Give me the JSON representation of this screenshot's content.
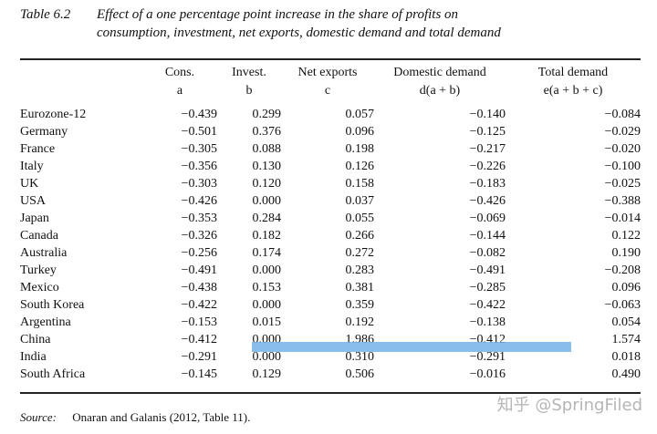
{
  "title": {
    "number": "Table 6.2",
    "line1": "Effect of a one percentage point increase in the share of profits on",
    "line2": "consumption, investment, net exports, domestic demand and total demand"
  },
  "columns": [
    {
      "name": "",
      "sub": ""
    },
    {
      "name": "Cons.",
      "sub": "a"
    },
    {
      "name": "Invest.",
      "sub": "b"
    },
    {
      "name": "Net exports",
      "sub": "c"
    },
    {
      "name": "Domestic demand",
      "sub": "d(a + b)"
    },
    {
      "name": "Total demand",
      "sub": "e(a + b + c)"
    }
  ],
  "rows": [
    [
      "Eurozone-12",
      "−0.439",
      "0.299",
      "0.057",
      "−0.140",
      "−0.084"
    ],
    [
      "Germany",
      "−0.501",
      "0.376",
      "0.096",
      "−0.125",
      "−0.029"
    ],
    [
      "France",
      "−0.305",
      "0.088",
      "0.198",
      "−0.217",
      "−0.020"
    ],
    [
      "Italy",
      "−0.356",
      "0.130",
      "0.126",
      "−0.226",
      "−0.100"
    ],
    [
      "UK",
      "−0.303",
      "0.120",
      "0.158",
      "−0.183",
      "−0.025"
    ],
    [
      "USA",
      "−0.426",
      "0.000",
      "0.037",
      "−0.426",
      "−0.388"
    ],
    [
      "Japan",
      "−0.353",
      "0.284",
      "0.055",
      "−0.069",
      "−0.014"
    ],
    [
      "Canada",
      "−0.326",
      "0.182",
      "0.266",
      "−0.144",
      "0.122"
    ],
    [
      "Australia",
      "−0.256",
      "0.174",
      "0.272",
      "−0.082",
      "0.190"
    ],
    [
      "Turkey",
      "−0.491",
      "0.000",
      "0.283",
      "−0.491",
      "−0.208"
    ],
    [
      "Mexico",
      "−0.438",
      "0.153",
      "0.381",
      "−0.285",
      "0.096"
    ],
    [
      "South Korea",
      "−0.422",
      "0.000",
      "0.359",
      "−0.422",
      "−0.063"
    ],
    [
      "Argentina",
      "−0.153",
      "0.015",
      "0.192",
      "−0.138",
      "0.054"
    ],
    [
      "China",
      "−0.412",
      "0.000",
      "1.986",
      "−0.412",
      "1.574"
    ],
    [
      "India",
      "−0.291",
      "0.000",
      "0.310",
      "−0.291",
      "0.018"
    ],
    [
      "South Africa",
      "−0.145",
      "0.129",
      "0.506",
      "−0.016",
      "0.490"
    ]
  ],
  "highlight_color": "#74b3e7",
  "source": {
    "label": "Source:",
    "text": "Onaran and Galanis (2012, Table 11)."
  },
  "watermark": "知乎 @SpringFiled"
}
